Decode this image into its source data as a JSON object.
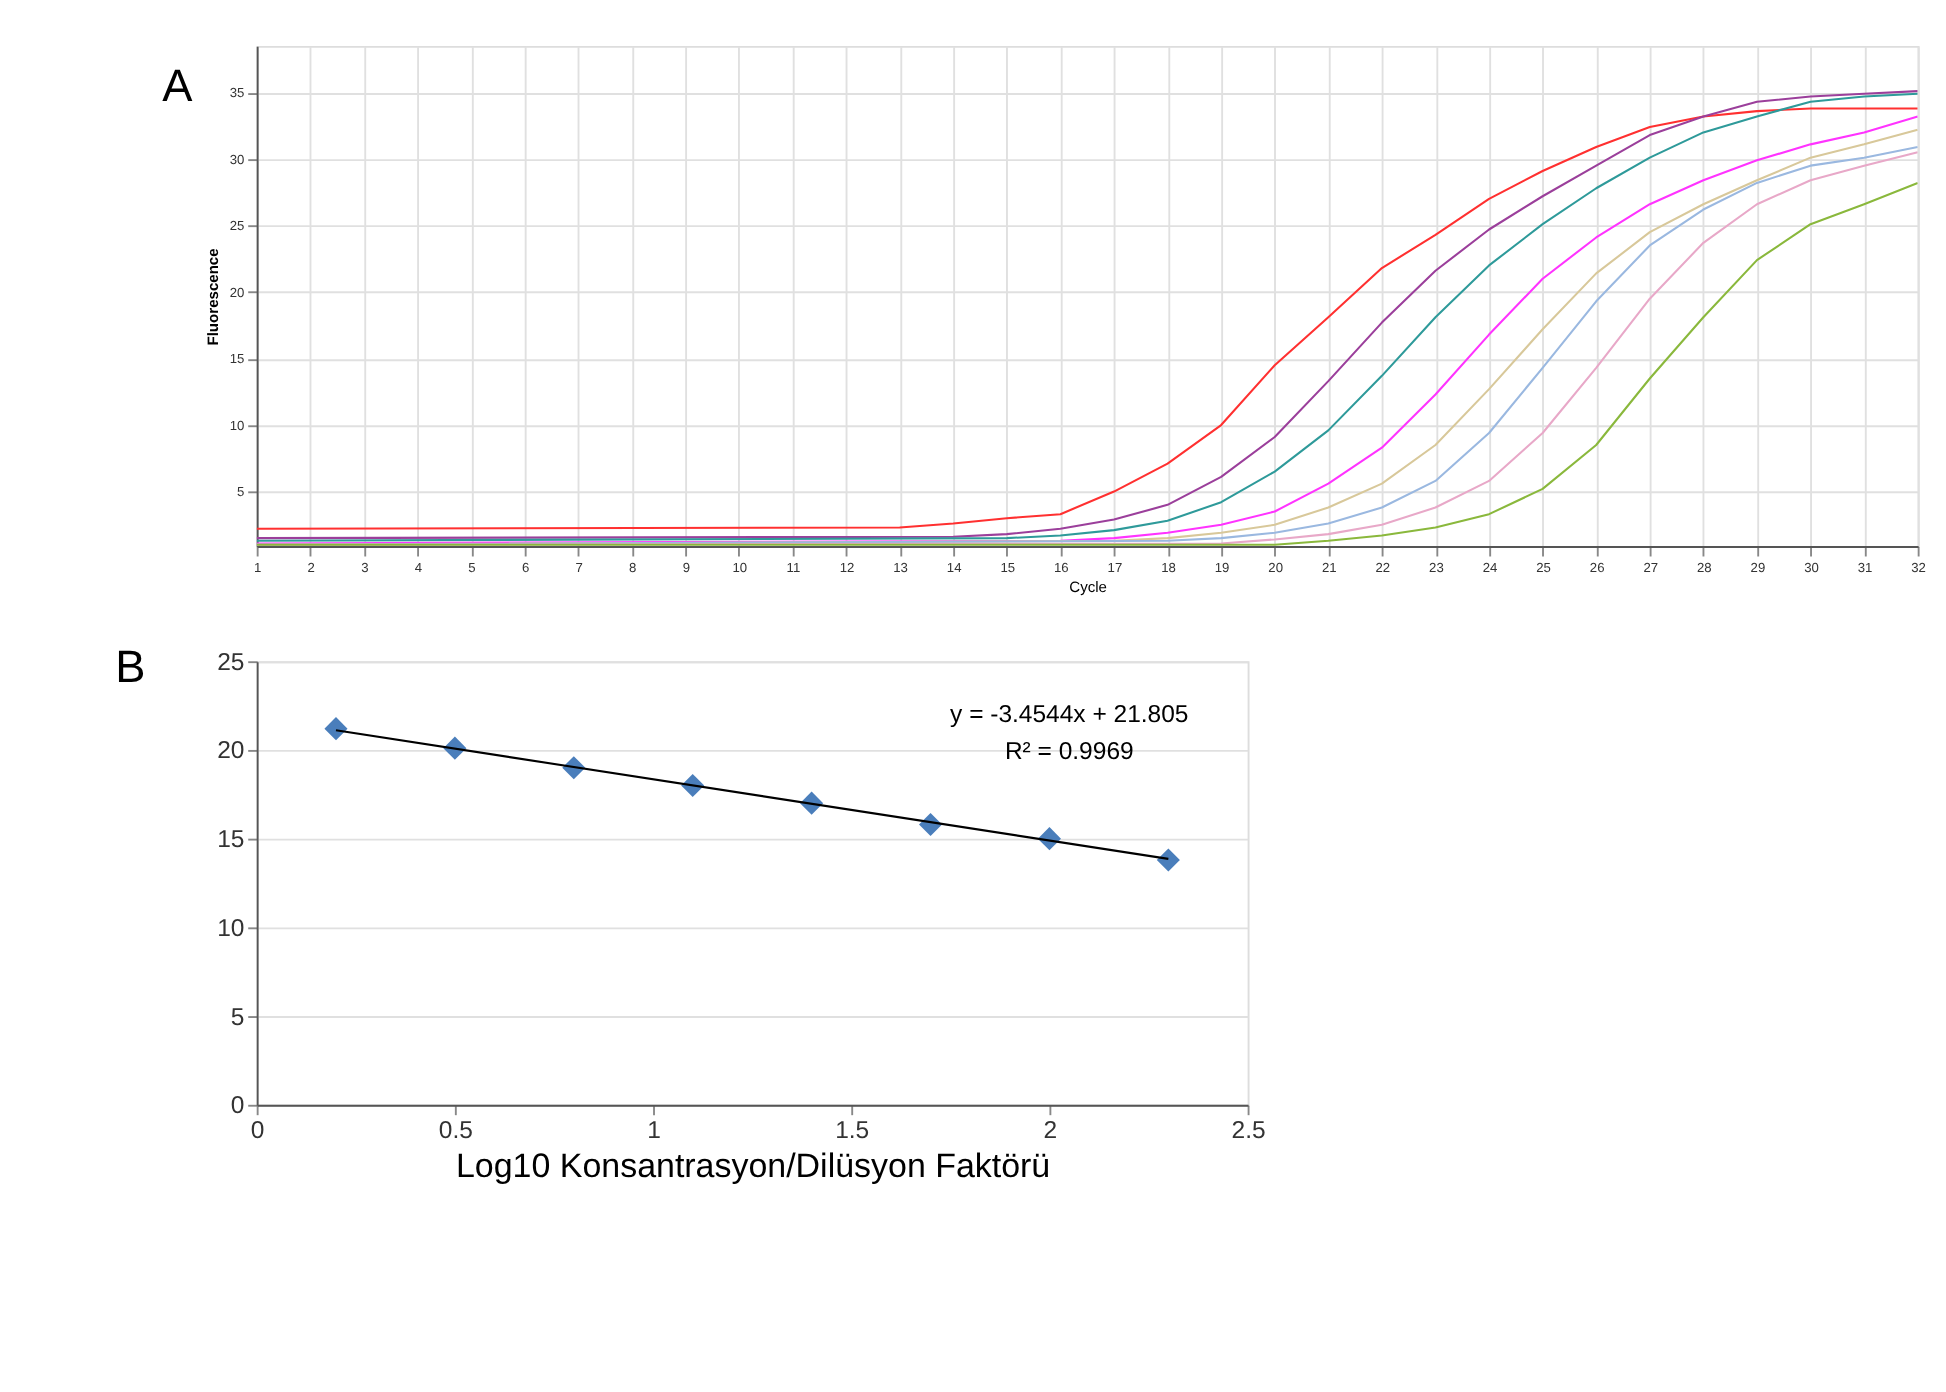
{
  "chart_data": [
    {
      "type": "line",
      "xlabel": "Cycle",
      "ylabel": "Fluorescence",
      "annotations": [
        "A"
      ],
      "xlim": [
        1,
        32
      ],
      "ylim": [
        0.9,
        38.5
      ],
      "xticks": [
        1,
        2,
        3,
        4,
        5,
        6,
        7,
        8,
        9,
        10,
        11,
        12,
        13,
        14,
        15,
        16,
        17,
        18,
        19,
        20,
        21,
        22,
        23,
        24,
        25,
        26,
        27,
        28,
        29,
        30,
        31,
        32
      ],
      "yticks": [
        5,
        10,
        15,
        20,
        25,
        30,
        35
      ],
      "grid": true,
      "marker": "none",
      "line_style": "solid",
      "series": [
        {
          "color": "#ff3030",
          "x": [
            1,
            13,
            14,
            15,
            16,
            17,
            18,
            19,
            20,
            21,
            22,
            23,
            24,
            25,
            26,
            27,
            28,
            29,
            30,
            31,
            32
          ],
          "values": [
            2.2,
            2.3,
            2.6,
            3.0,
            3.3,
            5.0,
            7.1,
            10.0,
            14.5,
            18.1,
            21.8,
            24.3,
            27.0,
            29.1,
            30.9,
            32.4,
            33.2,
            33.6,
            33.8,
            33.8,
            33.8
          ]
        },
        {
          "color": "#9b3f9b",
          "x": [
            1,
            14,
            15,
            16,
            17,
            18,
            19,
            20,
            21,
            22,
            23,
            24,
            25,
            26,
            27,
            28,
            29,
            30,
            31,
            32
          ],
          "values": [
            1.5,
            1.6,
            1.8,
            2.2,
            2.9,
            4.0,
            6.1,
            9.1,
            13.3,
            17.7,
            21.6,
            24.7,
            27.2,
            29.5,
            31.8,
            33.2,
            34.3,
            34.7,
            34.9,
            35.1
          ]
        },
        {
          "color": "#2e9a9a",
          "x": [
            1,
            15,
            16,
            17,
            18,
            19,
            20,
            21,
            22,
            23,
            24,
            25,
            26,
            27,
            28,
            29,
            30,
            31,
            32
          ],
          "values": [
            1.3,
            1.5,
            1.7,
            2.1,
            2.8,
            4.2,
            6.5,
            9.6,
            13.7,
            18.1,
            22.0,
            25.1,
            27.8,
            30.1,
            32.0,
            33.2,
            34.3,
            34.7,
            34.9
          ]
        },
        {
          "color": "#ff33ff",
          "x": [
            1,
            16,
            17,
            18,
            19,
            20,
            21,
            22,
            23,
            24,
            25,
            26,
            27,
            28,
            29,
            30,
            31,
            32
          ],
          "values": [
            1.1,
            1.3,
            1.5,
            1.9,
            2.5,
            3.5,
            5.6,
            8.3,
            12.3,
            16.8,
            21.0,
            24.1,
            26.6,
            28.4,
            29.9,
            31.1,
            32.0,
            33.2
          ]
        },
        {
          "color": "#d8c89a",
          "x": [
            1,
            17,
            18,
            19,
            20,
            21,
            22,
            23,
            24,
            25,
            26,
            27,
            28,
            29,
            30,
            31,
            32
          ],
          "values": [
            1.0,
            1.3,
            1.5,
            1.9,
            2.5,
            3.8,
            5.6,
            8.5,
            12.7,
            17.2,
            21.4,
            24.5,
            26.6,
            28.4,
            30.1,
            31.1,
            32.2
          ]
        },
        {
          "color": "#9ab8e0",
          "x": [
            1,
            18,
            19,
            20,
            21,
            22,
            23,
            24,
            25,
            26,
            27,
            28,
            29,
            30,
            31,
            32
          ],
          "values": [
            1.0,
            1.3,
            1.5,
            1.9,
            2.6,
            3.8,
            5.8,
            9.4,
            14.3,
            19.3,
            23.5,
            26.2,
            28.2,
            29.5,
            30.1,
            30.9
          ]
        },
        {
          "color": "#e8a8c8",
          "x": [
            1,
            19,
            20,
            21,
            22,
            23,
            24,
            25,
            26,
            27,
            28,
            29,
            30,
            31,
            32
          ],
          "values": [
            1.0,
            1.1,
            1.4,
            1.8,
            2.5,
            3.8,
            5.8,
            9.4,
            14.3,
            19.5,
            23.7,
            26.6,
            28.4,
            29.5,
            30.5
          ]
        },
        {
          "color": "#8ab83c",
          "x": [
            1,
            20,
            21,
            22,
            23,
            24,
            25,
            26,
            27,
            28,
            29,
            30,
            31,
            32
          ],
          "values": [
            1.0,
            1.0,
            1.3,
            1.7,
            2.3,
            3.3,
            5.2,
            8.5,
            13.5,
            18.1,
            22.4,
            25.1,
            26.6,
            28.2
          ]
        }
      ]
    },
    {
      "type": "scatter",
      "xlabel": "Log10 Konsantrasyon/Dilüsyon Faktörü",
      "annotations": [
        "B",
        "y = -3.4544x + 21.805",
        "R² = 0.9969"
      ],
      "xlim": [
        0,
        2.5
      ],
      "ylim": [
        0,
        25
      ],
      "xticks": [
        0,
        0.5,
        1,
        1.5,
        2,
        2.5
      ],
      "yticks": [
        0,
        5,
        10,
        15,
        20,
        25
      ],
      "grid": "y",
      "series": [
        {
          "color": "#4a7ebb",
          "marker": "diamond",
          "x": [
            0.2,
            0.5,
            0.8,
            1.1,
            1.4,
            1.7,
            2.0,
            2.3
          ],
          "values": [
            21.2,
            20.1,
            19.0,
            18.0,
            17.0,
            15.8,
            15.0,
            13.8
          ]
        },
        {
          "type": "line",
          "color": "#000000",
          "x": [
            0.2,
            2.3
          ],
          "values": [
            21.11,
            13.86
          ]
        }
      ]
    }
  ]
}
